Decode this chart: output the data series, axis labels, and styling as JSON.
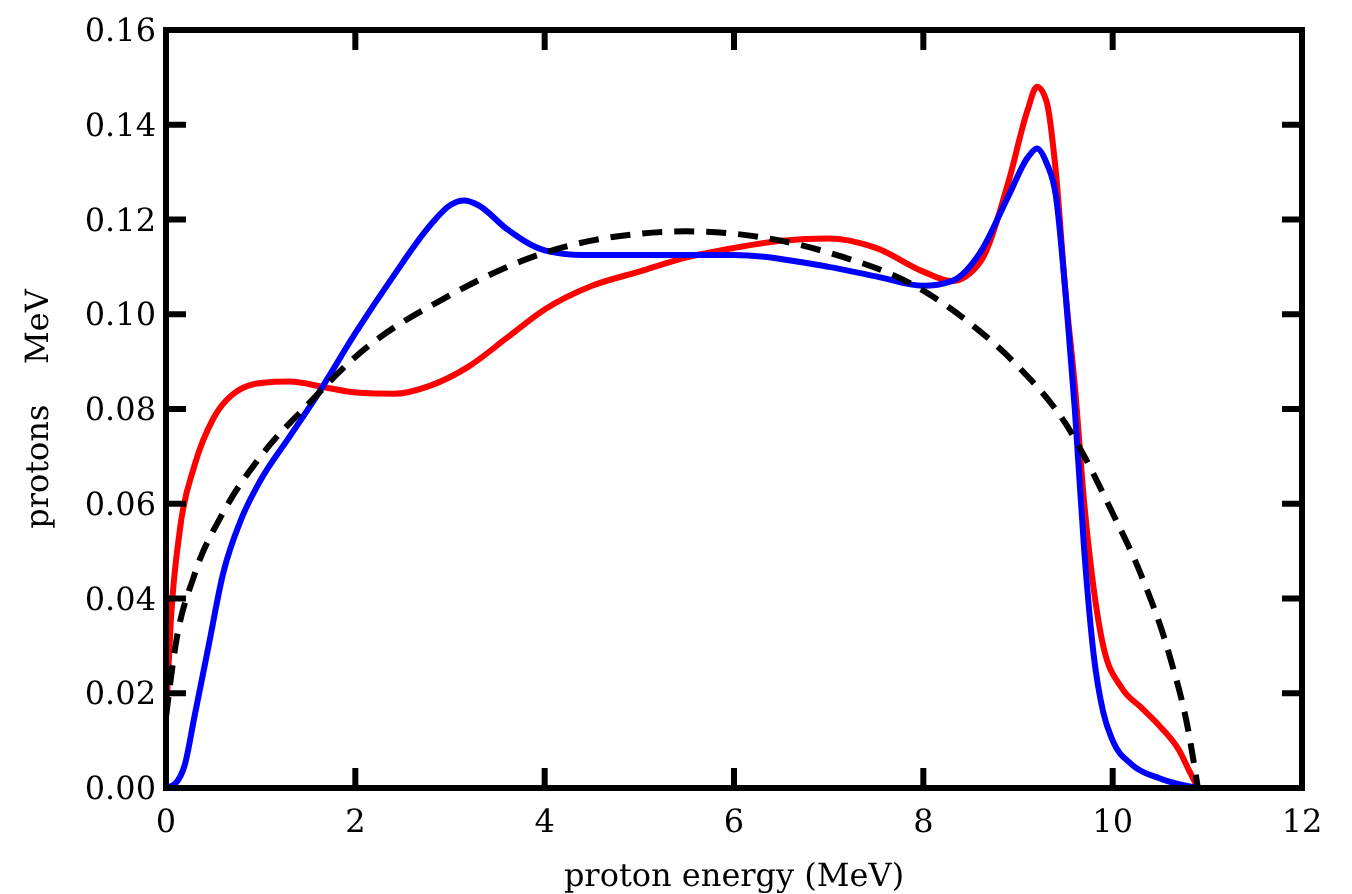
{
  "chart_data": {
    "type": "line",
    "xlabel": "proton energy (MeV)",
    "ylabel": "protons    MeV",
    "xlim": [
      0,
      12
    ],
    "ylim": [
      0,
      0.16
    ],
    "xticks": [
      0,
      2,
      4,
      6,
      8,
      10,
      12
    ],
    "yticks": [
      {
        "value": 0,
        "label": "0.00"
      },
      {
        "value": 0.02,
        "label": "0.02"
      },
      {
        "value": 0.04,
        "label": "0.04"
      },
      {
        "value": 0.06,
        "label": "0.06"
      },
      {
        "value": 0.08,
        "label": "0.08"
      },
      {
        "value": 0.1,
        "label": "0.10"
      },
      {
        "value": 0.12,
        "label": "0.12"
      },
      {
        "value": 0.14,
        "label": "0.14"
      },
      {
        "value": 0.16,
        "label": "0.16"
      }
    ],
    "grid": false,
    "series": [
      {
        "color": "#ff0000",
        "line_style": "solid",
        "x": [
          0,
          0.05,
          0.15,
          0.3,
          0.5,
          0.7,
          1.0,
          1.3,
          1.7,
          2.0,
          2.4,
          2.8,
          3.2,
          3.6,
          4.0,
          4.5,
          5,
          5.5,
          6,
          6.5,
          7,
          7.5,
          8,
          8.3,
          8.6,
          8.9,
          9.1,
          9.2,
          9.3,
          9.4,
          9.5,
          9.6,
          9.7,
          9.8,
          9.9,
          10.1,
          10.3,
          10.5,
          10.7,
          10.8,
          10.9
        ],
        "values": [
          0.015,
          0.035,
          0.055,
          0.068,
          0.078,
          0.083,
          0.0855,
          0.0858,
          0.0845,
          0.0835,
          0.0832,
          0.085,
          0.089,
          0.095,
          0.101,
          0.106,
          0.109,
          0.112,
          0.114,
          0.1155,
          0.116,
          0.114,
          0.109,
          0.107,
          0.111,
          0.128,
          0.143,
          0.148,
          0.145,
          0.13,
          0.105,
          0.085,
          0.06,
          0.042,
          0.03,
          0.021,
          0.017,
          0.013,
          0.008,
          0.004,
          0
        ]
      },
      {
        "color": "#0000ff",
        "line_style": "solid",
        "x": [
          0,
          0.1,
          0.2,
          0.3,
          0.45,
          0.6,
          0.8,
          1.0,
          1.3,
          1.6,
          2.0,
          2.4,
          2.8,
          3.0,
          3.15,
          3.3,
          3.6,
          4.0,
          4.4,
          5,
          6,
          7,
          7.5,
          8,
          8.3,
          8.6,
          8.9,
          9.1,
          9.2,
          9.3,
          9.4,
          9.5,
          9.6,
          9.7,
          9.8,
          9.9,
          10.0,
          10.2,
          10.5,
          10.9
        ],
        "values": [
          0,
          0.001,
          0.005,
          0.015,
          0.03,
          0.045,
          0.057,
          0.065,
          0.074,
          0.083,
          0.096,
          0.108,
          0.119,
          0.123,
          0.124,
          0.123,
          0.118,
          0.1135,
          0.1125,
          0.1125,
          0.1125,
          0.11,
          0.108,
          0.106,
          0.107,
          0.113,
          0.125,
          0.133,
          0.135,
          0.132,
          0.125,
          0.105,
          0.08,
          0.05,
          0.028,
          0.016,
          0.01,
          0.005,
          0.002,
          0
        ]
      },
      {
        "color": "#000000",
        "line_style": "dashed",
        "x": [
          0,
          0.1,
          0.3,
          0.6,
          1,
          1.5,
          2,
          3,
          4,
          5,
          5.5,
          6,
          7,
          8,
          8.5,
          9,
          9.5,
          10,
          10.3,
          10.6,
          10.8,
          10.9
        ],
        "values": [
          0.015,
          0.03,
          0.045,
          0.058,
          0.07,
          0.081,
          0.091,
          0.104,
          0.113,
          0.117,
          0.1175,
          0.117,
          0.113,
          0.105,
          0.098,
          0.089,
          0.077,
          0.058,
          0.045,
          0.028,
          0.012,
          0
        ]
      }
    ]
  }
}
